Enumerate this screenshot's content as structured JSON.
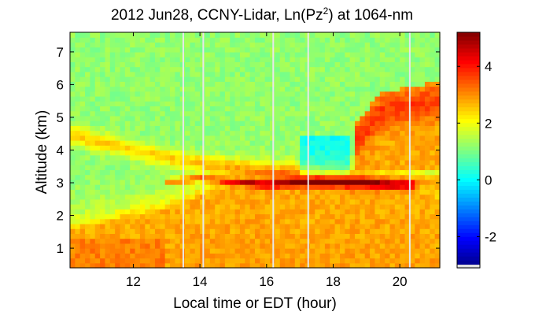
{
  "chart_data": {
    "type": "heatmap",
    "title_prefix": "2012 Jun28, CCNY-Lidar, Ln(Pz",
    "title_sup": "2",
    "title_suffix": ") at 1064-nm",
    "xlabel": "Local time or EDT (hour)",
    "ylabel": "Altitude (km)",
    "xlim": [
      10.1,
      21.2
    ],
    "ylim": [
      0.4,
      7.6
    ],
    "xticks": [
      12,
      14,
      16,
      18,
      20
    ],
    "yticks": [
      1,
      2,
      3,
      4,
      5,
      6,
      7
    ],
    "colorbar": {
      "range": [
        -3.1,
        5.2
      ],
      "ticks": [
        -2,
        0,
        2,
        4
      ],
      "colormap": "jet"
    },
    "features": {
      "background_value": 1.2,
      "gap_times": [
        13.5,
        14.1,
        16.2,
        17.25,
        20.3
      ],
      "aerosol_layer_top_km": {
        "time": [
          10.1,
          13.0,
          15.0,
          17.0,
          19.0,
          21.2
        ],
        "altitude": [
          1.5,
          2.2,
          2.95,
          3.1,
          3.0,
          2.45
        ]
      },
      "elevated_layer_km": {
        "time": [
          10.1,
          12.0,
          14.0,
          16.0,
          18.0,
          21.2
        ],
        "altitude": [
          4.5,
          4.0,
          3.6,
          3.35,
          3.15,
          3.05
        ]
      },
      "cloud_base_km": {
        "time": [
          13.2,
          14.0,
          16.0,
          17.0,
          18.5,
          19.8,
          20.1
        ],
        "altitude": [
          3.05,
          3.15,
          2.95,
          3.0,
          3.0,
          2.95,
          2.95
        ],
        "peak_value": 5.0
      },
      "upper_layer_km": {
        "time": [
          18.6,
          19.5,
          21.2
        ],
        "altitude": [
          4.2,
          5.2,
          5.5
        ],
        "value": 3.8
      }
    }
  }
}
